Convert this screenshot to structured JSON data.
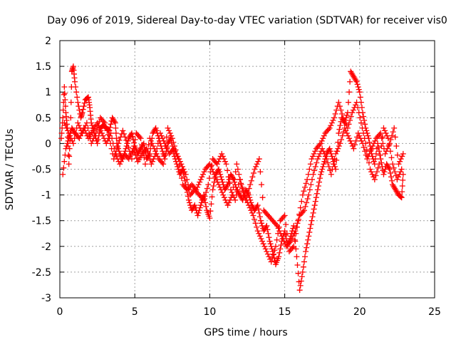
{
  "chart_data": {
    "type": "scatter",
    "title": "Day 096 of 2019, Sidereal Day-to-day VTEC variation (SDTVAR) for receiver vis0",
    "xlabel": "GPS time / hours",
    "ylabel": "SDTVAR / TECUs",
    "xlim": [
      0,
      25
    ],
    "ylim": [
      -3,
      2
    ],
    "xticks": [
      0,
      5,
      10,
      15,
      20,
      25
    ],
    "xtick_labels": [
      "0",
      "5",
      "10",
      "15",
      "20",
      "25"
    ],
    "yticks": [
      2,
      1.5,
      1,
      0.5,
      0,
      -0.5,
      -1,
      -1.5,
      -2,
      -2.5,
      -3
    ],
    "ytick_labels": [
      "2",
      "1.5",
      "1",
      "0.5",
      "0",
      "-0.5",
      "-1",
      "-1.5",
      "-2",
      "-2.5",
      "-3"
    ],
    "grid": true,
    "marker": "+",
    "series": [
      {
        "name": "SDTVAR",
        "color": "#ff0000",
        "points": [
          [
            0.1,
            0.1
          ],
          [
            0.2,
            0.5
          ],
          [
            0.3,
            1.1
          ],
          [
            0.4,
            0.6
          ],
          [
            0.5,
            0.3
          ],
          [
            0.6,
            -0.4
          ],
          [
            0.7,
            0.2
          ],
          [
            0.8,
            1.4
          ],
          [
            0.9,
            1.5
          ],
          [
            1.0,
            1.2
          ],
          [
            1.2,
            0.8
          ],
          [
            1.4,
            0.5
          ],
          [
            1.5,
            0.6
          ],
          [
            1.7,
            0.85
          ],
          [
            1.9,
            0.9
          ],
          [
            2.0,
            0.7
          ],
          [
            2.1,
            0.4
          ],
          [
            2.3,
            0.2
          ],
          [
            2.5,
            0.0
          ],
          [
            2.7,
            0.3
          ],
          [
            2.9,
            0.35
          ],
          [
            3.1,
            0.3
          ],
          [
            3.3,
            0.25
          ],
          [
            3.5,
            0.5
          ],
          [
            3.7,
            0.4
          ],
          [
            3.8,
            0.0
          ],
          [
            4.0,
            -0.2
          ],
          [
            4.2,
            -0.3
          ],
          [
            4.4,
            -0.1
          ],
          [
            4.6,
            0.1
          ],
          [
            4.8,
            0.2
          ],
          [
            5.0,
            -0.05
          ],
          [
            5.2,
            -0.2
          ],
          [
            5.4,
            -0.1
          ],
          [
            5.6,
            0.0
          ],
          [
            5.8,
            -0.3
          ],
          [
            6.0,
            -0.2
          ],
          [
            6.2,
            0.2
          ],
          [
            6.4,
            0.3
          ],
          [
            6.6,
            0.1
          ],
          [
            6.8,
            -0.1
          ],
          [
            7.0,
            -0.3
          ],
          [
            7.2,
            0.0
          ],
          [
            7.4,
            0.1
          ],
          [
            7.6,
            -0.2
          ],
          [
            7.8,
            -0.4
          ],
          [
            8.0,
            -0.6
          ],
          [
            8.2,
            -0.5
          ],
          [
            8.4,
            -0.8
          ],
          [
            8.6,
            -1.1
          ],
          [
            8.8,
            -1.3
          ],
          [
            9.0,
            -1.2
          ],
          [
            9.2,
            -1.4
          ],
          [
            9.4,
            -1.2
          ],
          [
            9.6,
            -1.0
          ],
          [
            9.8,
            -1.3
          ],
          [
            10.0,
            -1.45
          ],
          [
            10.2,
            -0.9
          ],
          [
            10.4,
            -0.6
          ],
          [
            10.6,
            -0.5
          ],
          [
            10.8,
            -0.7
          ],
          [
            11.0,
            -0.9
          ],
          [
            11.2,
            -0.8
          ],
          [
            11.4,
            -0.6
          ],
          [
            11.6,
            -0.7
          ],
          [
            11.8,
            -0.9
          ],
          [
            12.0,
            -1.0
          ],
          [
            12.2,
            -1.1
          ],
          [
            12.4,
            -0.9
          ],
          [
            12.6,
            -1.0
          ],
          [
            12.8,
            -1.2
          ],
          [
            13.0,
            -1.3
          ],
          [
            13.2,
            -1.2
          ],
          [
            13.4,
            -1.5
          ],
          [
            13.6,
            -1.7
          ],
          [
            13.8,
            -1.6
          ],
          [
            14.0,
            -1.9
          ],
          [
            14.2,
            -2.1
          ],
          [
            14.4,
            -2.35
          ],
          [
            14.6,
            -2.2
          ],
          [
            14.8,
            -1.9
          ],
          [
            15.0,
            -1.7
          ],
          [
            15.2,
            -2.0
          ],
          [
            15.4,
            -1.8
          ],
          [
            15.6,
            -1.6
          ],
          [
            15.8,
            -2.2
          ],
          [
            16.0,
            -2.85
          ],
          [
            16.2,
            -2.5
          ],
          [
            16.4,
            -2.1
          ],
          [
            16.6,
            -1.8
          ],
          [
            16.8,
            -1.5
          ],
          [
            17.0,
            -1.2
          ],
          [
            17.2,
            -0.9
          ],
          [
            17.4,
            -0.6
          ],
          [
            17.6,
            -0.4
          ],
          [
            17.8,
            -0.2
          ],
          [
            18.0,
            -0.1
          ],
          [
            18.2,
            -0.3
          ],
          [
            18.4,
            -0.5
          ],
          [
            18.6,
            0.2
          ],
          [
            18.8,
            0.5
          ],
          [
            19.0,
            0.4
          ],
          [
            19.2,
            0.6
          ],
          [
            19.4,
            1.4
          ],
          [
            19.6,
            1.3
          ],
          [
            19.8,
            1.2
          ],
          [
            20.0,
            1.0
          ],
          [
            20.2,
            0.6
          ],
          [
            20.4,
            0.3
          ],
          [
            20.6,
            0.1
          ],
          [
            20.8,
            -0.2
          ],
          [
            21.0,
            -0.4
          ],
          [
            21.2,
            0.0
          ],
          [
            21.4,
            -0.3
          ],
          [
            21.6,
            -0.6
          ],
          [
            21.8,
            -0.4
          ],
          [
            22.0,
            -0.5
          ],
          [
            22.2,
            -0.8
          ],
          [
            22.4,
            -0.9
          ],
          [
            22.6,
            -1.0
          ],
          [
            22.8,
            -1.05
          ],
          [
            22.9,
            -0.6
          ],
          [
            0.2,
            -0.6
          ],
          [
            0.4,
            -0.1
          ],
          [
            0.6,
            0.1
          ],
          [
            0.8,
            0.3
          ],
          [
            1.0,
            0.2
          ],
          [
            1.3,
            0.1
          ],
          [
            1.6,
            0.3
          ],
          [
            1.9,
            0.1
          ],
          [
            2.2,
            0.25
          ],
          [
            2.5,
            0.4
          ],
          [
            2.8,
            0.2
          ],
          [
            3.1,
            0.0
          ],
          [
            3.4,
            0.2
          ],
          [
            3.7,
            -0.2
          ],
          [
            4.0,
            -0.4
          ],
          [
            4.3,
            -0.2
          ],
          [
            4.6,
            -0.3
          ],
          [
            4.9,
            -0.1
          ],
          [
            5.2,
            -0.35
          ],
          [
            5.5,
            -0.2
          ],
          [
            5.8,
            -0.1
          ],
          [
            6.1,
            -0.4
          ],
          [
            6.4,
            -0.2
          ],
          [
            6.7,
            0.2
          ],
          [
            7.0,
            0.0
          ],
          [
            7.3,
            -0.2
          ],
          [
            7.6,
            -0.1
          ],
          [
            7.9,
            -0.3
          ],
          [
            8.2,
            -0.8
          ],
          [
            8.5,
            -0.9
          ],
          [
            8.8,
            -0.8
          ],
          [
            9.1,
            -0.9
          ],
          [
            9.4,
            -0.7
          ],
          [
            9.7,
            -0.5
          ],
          [
            10.0,
            -0.4
          ],
          [
            10.3,
            -0.6
          ],
          [
            10.6,
            -0.8
          ],
          [
            10.9,
            -1.0
          ],
          [
            11.2,
            -1.2
          ],
          [
            11.5,
            -1.0
          ],
          [
            11.8,
            -0.4
          ],
          [
            12.1,
            -0.8
          ],
          [
            12.4,
            -1.1
          ],
          [
            12.7,
            -0.8
          ],
          [
            13.0,
            -0.5
          ],
          [
            13.3,
            -0.3
          ],
          [
            13.6,
            -1.3
          ],
          [
            13.9,
            -1.4
          ],
          [
            14.2,
            -1.5
          ],
          [
            14.5,
            -1.6
          ],
          [
            14.8,
            -1.8
          ],
          [
            15.1,
            -2.0
          ],
          [
            15.4,
            -1.9
          ],
          [
            15.7,
            -1.7
          ],
          [
            16.0,
            -1.4
          ],
          [
            16.3,
            -1.3
          ],
          [
            16.6,
            -1.0
          ],
          [
            16.9,
            -0.6
          ],
          [
            17.2,
            -0.3
          ],
          [
            17.5,
            -0.1
          ],
          [
            17.8,
            -0.3
          ],
          [
            18.1,
            -0.6
          ],
          [
            18.4,
            -0.2
          ],
          [
            18.7,
            0.0
          ],
          [
            19.0,
            0.3
          ],
          [
            19.3,
            0.1
          ],
          [
            19.6,
            -0.1
          ],
          [
            19.9,
            0.2
          ],
          [
            20.2,
            0.0
          ],
          [
            20.5,
            -0.3
          ],
          [
            20.8,
            -0.1
          ],
          [
            21.1,
            0.1
          ],
          [
            21.4,
            0.2
          ],
          [
            21.7,
            -0.2
          ],
          [
            22.0,
            0.0
          ],
          [
            22.3,
            0.3
          ],
          [
            22.6,
            -0.4
          ],
          [
            22.9,
            -0.2
          ],
          [
            0.3,
            0.4
          ],
          [
            0.6,
            0.2
          ],
          [
            0.9,
            0.0
          ],
          [
            1.2,
            0.4
          ],
          [
            1.5,
            0.2
          ],
          [
            1.8,
            0.4
          ],
          [
            2.1,
            0.0
          ],
          [
            2.4,
            0.2
          ],
          [
            2.7,
            0.5
          ],
          [
            3.0,
            0.4
          ],
          [
            3.3,
            0.1
          ],
          [
            3.6,
            -0.3
          ],
          [
            3.9,
            0.0
          ],
          [
            4.2,
            0.25
          ],
          [
            4.5,
            0.0
          ],
          [
            4.8,
            -0.3
          ],
          [
            5.1,
            0.2
          ],
          [
            5.4,
            0.1
          ],
          [
            5.7,
            -0.4
          ],
          [
            6.0,
            0.1
          ],
          [
            6.3,
            -0.1
          ],
          [
            6.6,
            -0.3
          ],
          [
            6.9,
            -0.4
          ],
          [
            7.2,
            0.3
          ],
          [
            7.5,
            0.1
          ],
          [
            7.8,
            -0.2
          ],
          [
            8.1,
            -0.4
          ],
          [
            8.4,
            -0.6
          ],
          [
            8.7,
            -1.0
          ],
          [
            9.0,
            -0.9
          ],
          [
            9.3,
            -1.0
          ],
          [
            9.6,
            -1.1
          ],
          [
            9.9,
            -0.8
          ],
          [
            10.2,
            -0.3
          ],
          [
            10.5,
            -0.4
          ],
          [
            10.8,
            -0.2
          ],
          [
            11.1,
            -0.4
          ],
          [
            11.4,
            -0.9
          ],
          [
            11.7,
            -1.1
          ],
          [
            12.0,
            -0.7
          ],
          [
            12.3,
            -1.0
          ],
          [
            12.6,
            -1.2
          ],
          [
            12.9,
            -1.4
          ],
          [
            13.2,
            -1.7
          ],
          [
            13.5,
            -1.9
          ],
          [
            13.8,
            -2.1
          ],
          [
            14.1,
            -2.3
          ],
          [
            14.4,
            -2.0
          ],
          [
            14.7,
            -1.5
          ],
          [
            15.0,
            -1.4
          ],
          [
            15.3,
            -2.1
          ],
          [
            15.6,
            -2.0
          ],
          [
            15.9,
            -1.5
          ],
          [
            16.2,
            -1.0
          ],
          [
            16.5,
            -0.7
          ],
          [
            16.8,
            -0.3
          ],
          [
            17.1,
            -0.1
          ],
          [
            17.4,
            0.0
          ],
          [
            17.7,
            0.2
          ],
          [
            18.0,
            0.3
          ],
          [
            18.3,
            0.5
          ],
          [
            18.6,
            0.8
          ],
          [
            18.9,
            0.5
          ],
          [
            19.2,
            0.3
          ],
          [
            19.5,
            0.6
          ],
          [
            19.8,
            0.8
          ],
          [
            20.1,
            0.4
          ],
          [
            20.4,
            0.0
          ],
          [
            20.7,
            -0.5
          ],
          [
            21.0,
            -0.7
          ],
          [
            21.3,
            -0.4
          ],
          [
            21.6,
            0.3
          ],
          [
            21.9,
            0.1
          ],
          [
            22.2,
            -0.4
          ],
          [
            22.5,
            -0.7
          ],
          [
            22.8,
            -0.5
          ]
        ]
      }
    ]
  }
}
